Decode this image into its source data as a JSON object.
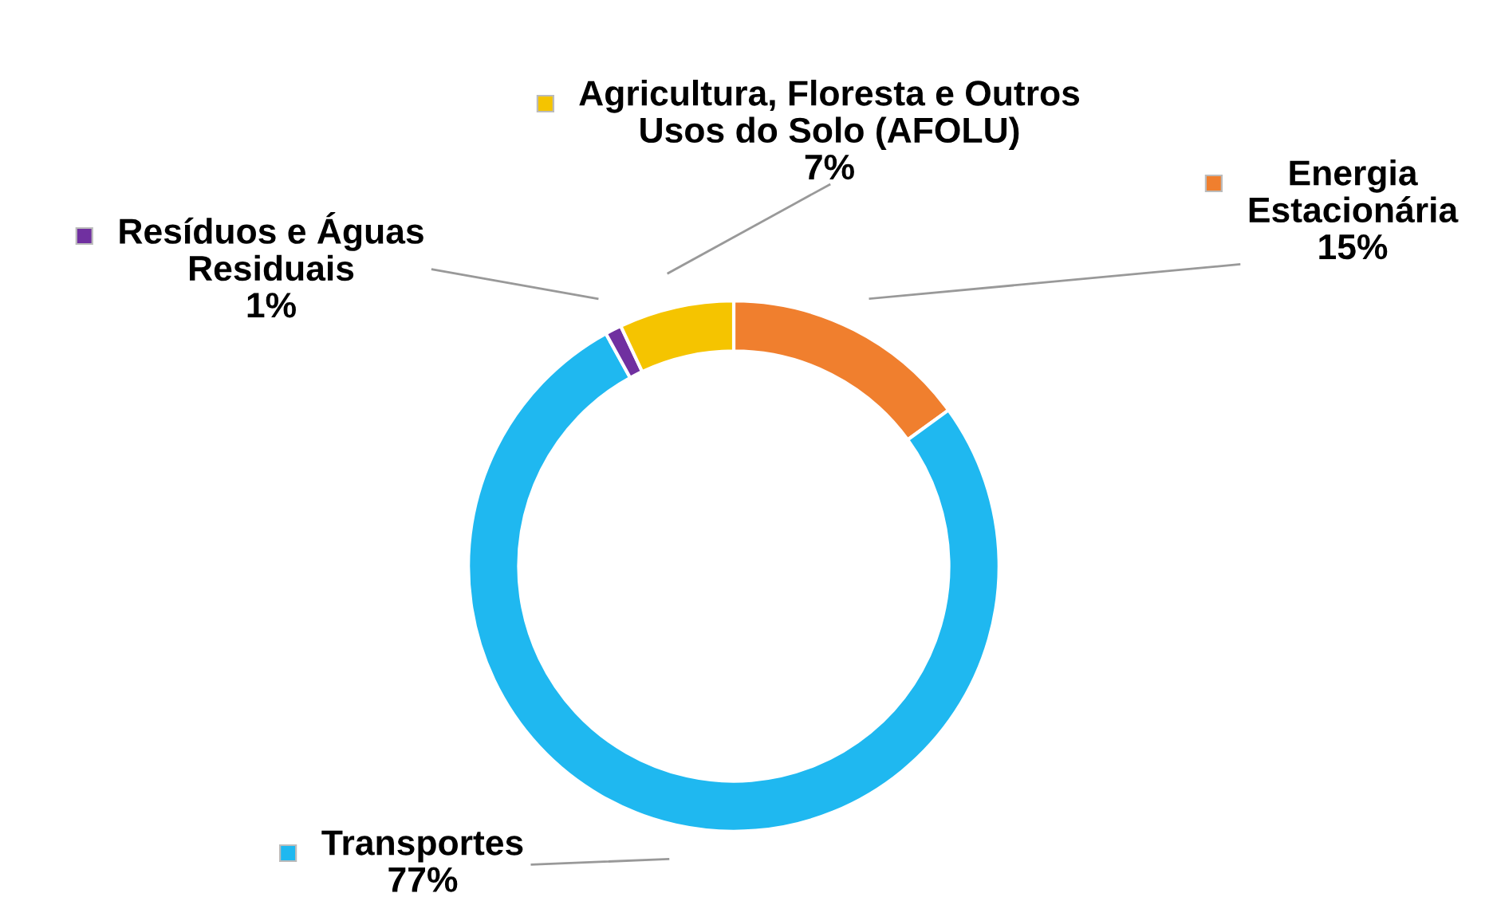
{
  "chart_data": {
    "type": "donut",
    "categories": [
      "Energia Estacionária",
      "Transportes",
      "Resíduos e Águas Residuais",
      "Agricultura, Floresta e Outros Usos do Solo (AFOLU)"
    ],
    "values": [
      15,
      77,
      1,
      7
    ],
    "value_labels": [
      "15%",
      "77%",
      "1%",
      "7%"
    ],
    "colors": [
      "#f07f2e",
      "#1fb8f0",
      "#7030a0",
      "#f5c400"
    ],
    "legend": "top"
  }
}
